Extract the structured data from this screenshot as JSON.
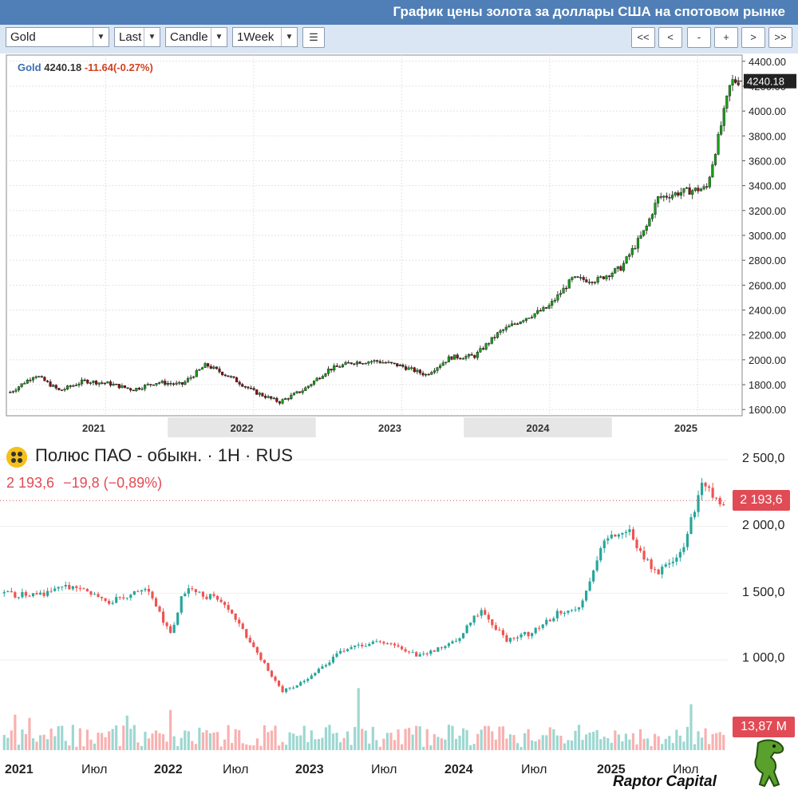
{
  "gold": {
    "title": "График цены золота за доллары США на спотовом рынке",
    "toolbar": {
      "symbol": "Gold",
      "price_type": "Last",
      "chart_type": "Candle",
      "interval": "1Week",
      "nav": [
        "<<",
        "<",
        "-",
        "+",
        ">",
        ">>"
      ]
    },
    "legend": {
      "name": "Gold",
      "price": "4240.18",
      "change": "-11.64(-0.27%)"
    },
    "last_price_tag": "4240.18",
    "y_ticks": [
      "4400.00",
      "4200.00",
      "4000.00",
      "3800.00",
      "3600.00",
      "3400.00",
      "3200.00",
      "3000.00",
      "2800.00",
      "2600.00",
      "2400.00",
      "2200.00",
      "2000.00",
      "1800.00",
      "1600.00"
    ],
    "x_ticks": [
      "2021",
      "2022",
      "2023",
      "2024",
      "2025"
    ]
  },
  "polyus": {
    "title": "Полюс ПАО - обыкн. · 1Н · RUS",
    "price": "2 193,6",
    "change": "−19,8 (−0,89%)",
    "price_tag": "2 193,6",
    "volume_tag": "13,87 M",
    "y_ticks": [
      "2 500,0",
      "2 000,0",
      "1 500,0",
      "1 000,0"
    ],
    "x_ticks": [
      "2021",
      "Июл",
      "2022",
      "Июл",
      "2023",
      "Июл",
      "2024",
      "Июл",
      "2025",
      "Июл"
    ]
  },
  "brand": "Raptor Capital",
  "colors": {
    "gold_up": "#16a016",
    "gold_down": "#8b1212",
    "polyus_up": "#26a69a",
    "polyus_down": "#ef5350",
    "header_bar": "#4f7fb6"
  },
  "chart_data": [
    {
      "type": "line",
      "title": "График цены золота за доллары США на спотовом рынке",
      "series": [
        {
          "name": "Gold",
          "x": [
            "2020-11",
            "2021-01",
            "2021-03",
            "2021-05",
            "2021-07",
            "2021-09",
            "2021-11",
            "2022-01",
            "2022-03",
            "2022-05",
            "2022-07",
            "2022-09",
            "2022-11",
            "2023-01",
            "2023-03",
            "2023-05",
            "2023-07",
            "2023-09",
            "2023-11",
            "2024-01",
            "2024-03",
            "2024-05",
            "2024-07",
            "2024-09",
            "2024-11",
            "2025-01",
            "2025-03",
            "2025-04",
            "2025-06",
            "2025-08",
            "2025-09",
            "2025-10"
          ],
          "values": [
            1740,
            1880,
            1750,
            1830,
            1810,
            1760,
            1820,
            1800,
            1960,
            1860,
            1740,
            1660,
            1760,
            1920,
            1980,
            1990,
            1950,
            1880,
            2020,
            2030,
            2220,
            2330,
            2420,
            2650,
            2640,
            2740,
            3050,
            3300,
            3350,
            3380,
            3800,
            4240
          ]
        }
      ],
      "ylim": [
        1550,
        4450
      ],
      "y_scale_side": "right",
      "grid": true
    },
    {
      "type": "line",
      "title": "Полюс ПАО - обыкн. · 1Н · RUS",
      "series": [
        {
          "name": "Полюс ПАО",
          "x": [
            "2020-12",
            "2021-03",
            "2021-06",
            "2021-09",
            "2021-12",
            "2022-02",
            "2022-03",
            "2022-06",
            "2022-09",
            "2022-11",
            "2023-01",
            "2023-04",
            "2023-07",
            "2023-10",
            "2024-01",
            "2024-03",
            "2024-05",
            "2024-07",
            "2024-09",
            "2024-11",
            "2025-01",
            "2025-03",
            "2025-05",
            "2025-07",
            "2025-09",
            "2025-10"
          ],
          "values": [
            1500,
            1480,
            1560,
            1440,
            1520,
            1200,
            1520,
            1450,
            1050,
            760,
            850,
            1080,
            1140,
            1030,
            1130,
            1380,
            1150,
            1200,
            1340,
            1380,
            1900,
            1950,
            1650,
            1750,
            2350,
            2193.6
          ]
        }
      ],
      "ylim": [
        800,
        2600
      ],
      "volume_last": "13,87 M",
      "grid": true
    }
  ]
}
